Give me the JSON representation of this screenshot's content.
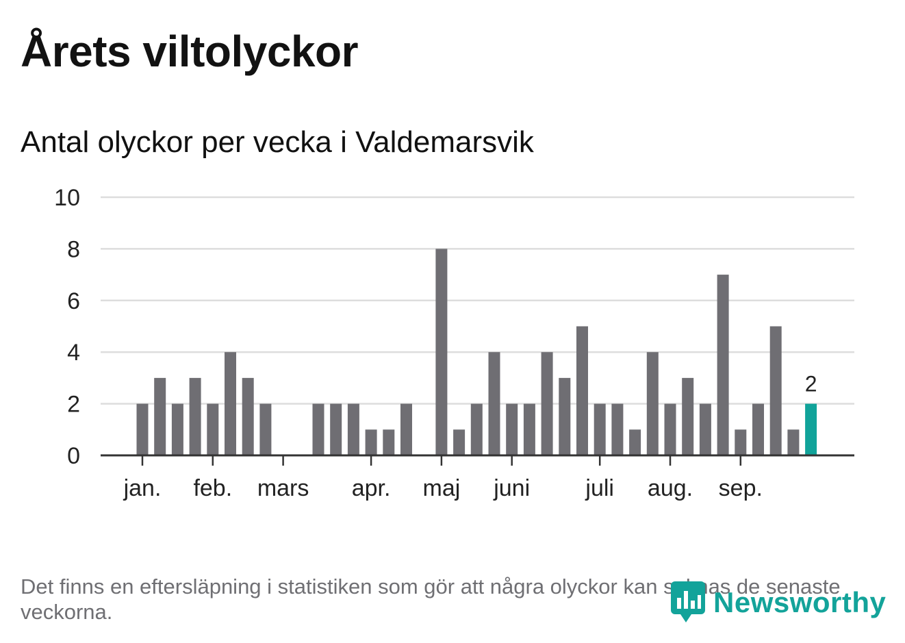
{
  "title": "Årets viltolyckor",
  "subtitle": "Antal olyckor per vecka i Valdemarsvik",
  "note": "Det finns en eftersläpning i statistiken som gör att några olyckor kan saknas de senaste veckorna.",
  "logo": {
    "text": "Newsworthy",
    "icon": "newsworthy-logo-icon"
  },
  "colors": {
    "bar": "#6f6e73",
    "highlight": "#11a39a",
    "grid": "#dddddd",
    "axis": "#333333",
    "text": "#222222"
  },
  "chart_data": {
    "type": "bar",
    "x": [
      "1",
      "2",
      "3",
      "4",
      "5",
      "6",
      "7",
      "8",
      "9",
      "10",
      "11",
      "12",
      "13",
      "14",
      "15",
      "16",
      "17",
      "18",
      "19",
      "20",
      "21",
      "22",
      "23",
      "24",
      "25",
      "26",
      "27",
      "28",
      "29",
      "30",
      "31",
      "32",
      "33",
      "34",
      "35",
      "36",
      "37",
      "38",
      "39"
    ],
    "values": [
      2,
      3,
      2,
      3,
      2,
      4,
      3,
      2,
      0,
      0,
      2,
      2,
      2,
      1,
      1,
      2,
      0,
      8,
      1,
      2,
      4,
      2,
      2,
      4,
      3,
      5,
      2,
      2,
      1,
      4,
      2,
      3,
      2,
      7,
      1,
      2,
      5,
      1,
      2
    ],
    "highlight_last": true,
    "last_value_label": "2",
    "ylim": [
      0,
      10
    ],
    "yticks": [
      0,
      2,
      4,
      6,
      8,
      10
    ],
    "month_labels": [
      {
        "label": "jan.",
        "week": 1
      },
      {
        "label": "feb.",
        "week": 5
      },
      {
        "label": "mars",
        "week": 9
      },
      {
        "label": "apr.",
        "week": 14
      },
      {
        "label": "maj",
        "week": 18
      },
      {
        "label": "juni",
        "week": 22
      },
      {
        "label": "juli",
        "week": 27
      },
      {
        "label": "aug.",
        "week": 31
      },
      {
        "label": "sep.",
        "week": 35
      }
    ],
    "grid": true,
    "legend": "none"
  }
}
